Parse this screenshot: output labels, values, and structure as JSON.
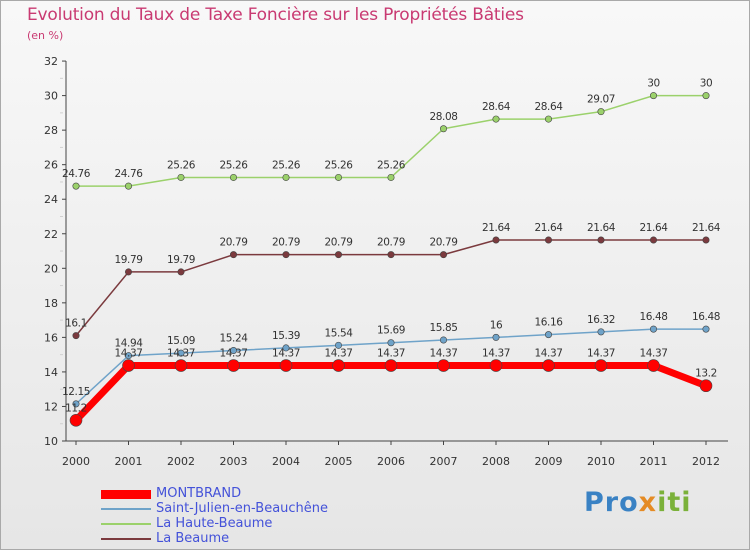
{
  "title": "Evolution du Taux de Taxe Foncière sur les Propriétés Bâties",
  "subtitle": "(en %)",
  "logo": {
    "part1": "Pro",
    "part2": "x",
    "part3": "iti"
  },
  "chart_data": {
    "type": "line",
    "title": "Evolution du Taux de Taxe Foncière sur les Propriétés Bâties",
    "ylabel": "(en %)",
    "xlabel": "",
    "ylim": [
      10,
      32
    ],
    "yticks": [
      10,
      12,
      14,
      16,
      18,
      20,
      22,
      24,
      26,
      28,
      30,
      32
    ],
    "categories": [
      "2000",
      "2001",
      "2002",
      "2003",
      "2004",
      "2005",
      "2006",
      "2007",
      "2008",
      "2009",
      "2010",
      "2011",
      "2012"
    ],
    "series": [
      {
        "name": "MONTBRAND",
        "color": "#ff0000",
        "values": [
          11.2,
          14.37,
          14.37,
          14.37,
          14.37,
          14.37,
          14.37,
          14.37,
          14.37,
          14.37,
          14.37,
          14.37,
          13.2
        ],
        "labels": [
          "11.2",
          "14.37",
          "14.37",
          "14.37",
          "14.37",
          "14.37",
          "14.37",
          "14.37",
          "14.37",
          "14.37",
          "14.37",
          "14.37",
          "13.2"
        ]
      },
      {
        "name": "Saint-Julien-en-Beauchêne",
        "color": "#6fa3c9",
        "values": [
          12.15,
          14.94,
          15.09,
          15.24,
          15.39,
          15.54,
          15.69,
          15.85,
          16,
          16.16,
          16.32,
          16.48,
          16.48
        ],
        "labels": [
          "12.15",
          "14.94",
          "15.09",
          "15.24",
          "15.39",
          "15.54",
          "15.69",
          "15.85",
          "16",
          "16.16",
          "16.32",
          "16.48",
          "16.48"
        ]
      },
      {
        "name": "La Haute-Beaume",
        "color": "#9bd16b",
        "values": [
          24.76,
          24.76,
          25.26,
          25.26,
          25.26,
          25.26,
          25.26,
          28.08,
          28.64,
          28.64,
          29.07,
          30,
          30
        ],
        "labels": [
          "24.76",
          "24.76",
          "25.26",
          "25.26",
          "25.26",
          "25.26",
          "25.26",
          "28.08",
          "28.64",
          "28.64",
          "29.07",
          "30",
          "30"
        ]
      },
      {
        "name": "La Beaume",
        "color": "#7b3a3e",
        "values": [
          16.1,
          19.79,
          19.79,
          20.79,
          20.79,
          20.79,
          20.79,
          20.79,
          21.64,
          21.64,
          21.64,
          21.64,
          21.64
        ],
        "labels": [
          "16.1",
          "19.79",
          "19.79",
          "20.79",
          "20.79",
          "20.79",
          "20.79",
          "20.79",
          "21.64",
          "21.64",
          "21.64",
          "21.64",
          "21.64"
        ]
      }
    ],
    "legend_position": "bottom-left",
    "grid": false
  }
}
